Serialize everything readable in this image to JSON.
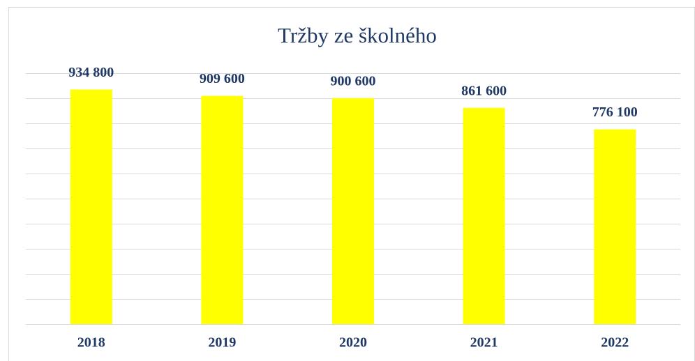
{
  "chart_data": {
    "type": "bar",
    "title": "Tržby ze školného",
    "categories": [
      "2018",
      "2019",
      "2020",
      "2021",
      "2022"
    ],
    "values": [
      934800,
      909600,
      900600,
      861600,
      776100
    ],
    "value_labels": [
      "934 800",
      "909 600",
      "900 600",
      "861 600",
      "776 100"
    ],
    "color": "#ffff00",
    "ylim": [
      0,
      1000000
    ],
    "yticks": [
      0,
      100000,
      200000,
      300000,
      400000,
      500000,
      600000,
      700000,
      800000,
      900000,
      1000000
    ],
    "grid": true
  }
}
